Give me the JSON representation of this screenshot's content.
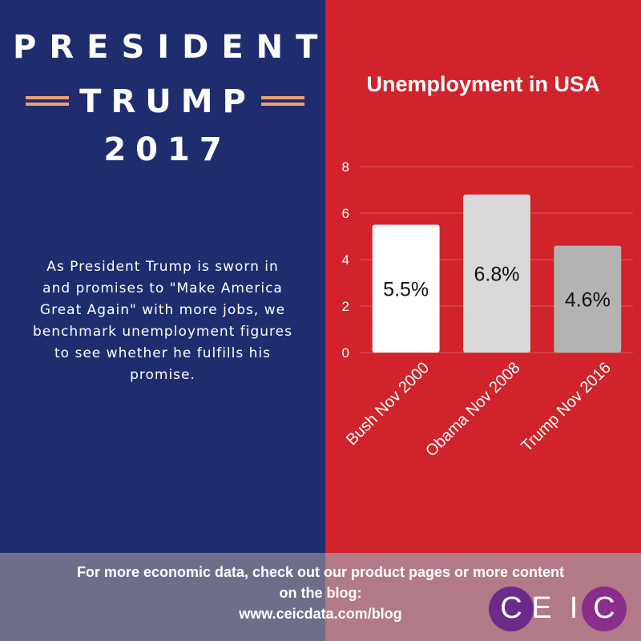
{
  "infographic": {
    "title_lines": [
      "PRESIDENT",
      "TRUMP",
      "2017"
    ],
    "description": "As President Trump is sworn in and promises to \"Make America Great Again\" with more jobs, we benchmark unemployment figures to see whether he fulfills his promise.",
    "colors": {
      "left_bg": "#1f2d6e",
      "right_bg": "#d0232b",
      "accent": "#f0a070"
    }
  },
  "chart_data": {
    "type": "bar",
    "title": "Unemployment in USA",
    "categories": [
      "Bush Nov 2000",
      "Obama Nov 2008",
      "Trump Nov 2016"
    ],
    "values": [
      5.5,
      6.8,
      4.6
    ],
    "value_labels": [
      "5.5%",
      "6.8%",
      "4.6%"
    ],
    "bar_colors": [
      "#ffffff",
      "#d9d9d9",
      "#b3b3b3"
    ],
    "yticks": [
      "0",
      "2",
      "4",
      "6",
      "8"
    ],
    "ylim": [
      0,
      8
    ],
    "xlabel": "",
    "ylabel": "",
    "grid": true
  },
  "footer": {
    "line1": "For more economic data, check out our product pages or more content",
    "line2": "on the blog:",
    "url": "www.ceicdata.com/blog"
  },
  "logo": {
    "letters": [
      "C",
      "E",
      "I",
      "C"
    ]
  }
}
